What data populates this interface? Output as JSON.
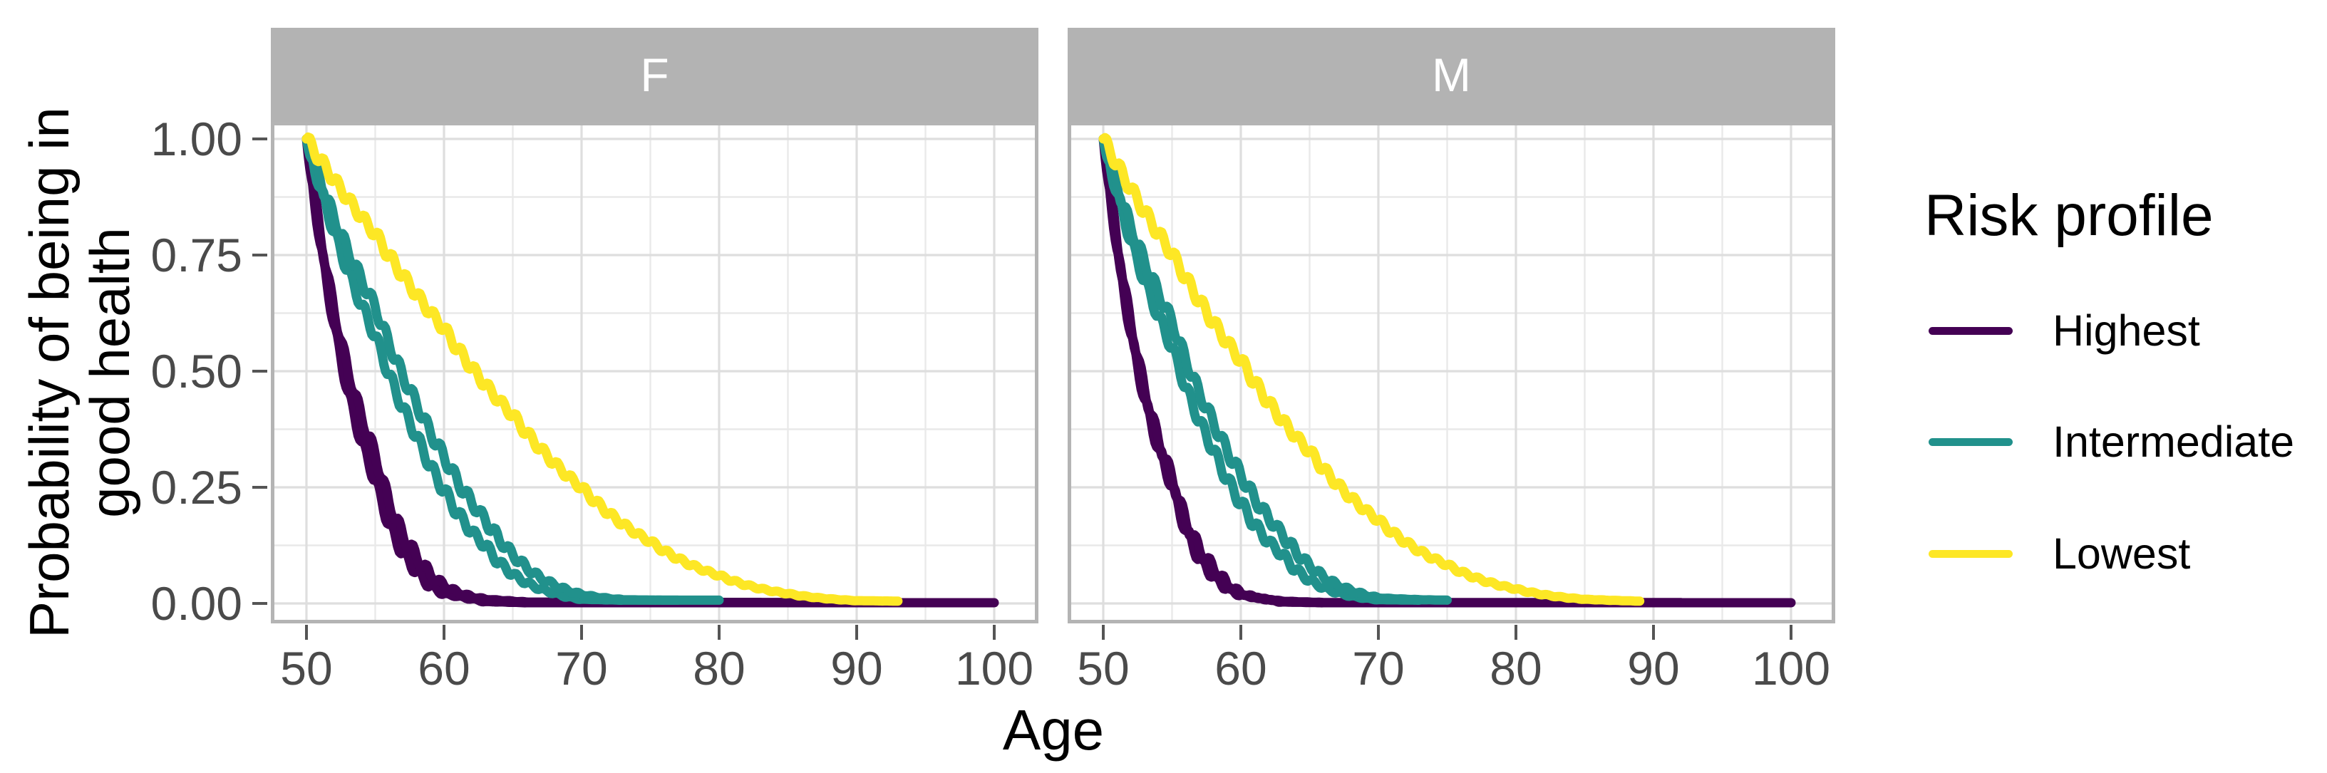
{
  "chart_data": {
    "type": "line",
    "title": "",
    "xlabel": "Age",
    "ylabel_lines": [
      "Probability of being in",
      "good health"
    ],
    "x_ticks": [
      50,
      60,
      70,
      80,
      90,
      100
    ],
    "x_minor": [
      55,
      65,
      75,
      85,
      95
    ],
    "y_ticks": [
      {
        "label": "1.00",
        "value": 1.0
      },
      {
        "label": "0.75",
        "value": 0.75
      },
      {
        "label": "0.50",
        "value": 0.5
      },
      {
        "label": "0.25",
        "value": 0.25
      },
      {
        "label": "0.00",
        "value": 0.0
      }
    ],
    "y_minor": [
      0.125,
      0.375,
      0.625,
      0.875
    ],
    "xlim": [
      47.4,
      103.2
    ],
    "ylim": [
      -0.043,
      1.037
    ],
    "grid": "major+minor",
    "legend": {
      "title": "Risk profile",
      "position": "right",
      "entries": [
        {
          "label": "Highest",
          "color": "#440154"
        },
        {
          "label": "Intermediate",
          "color": "#21918c"
        },
        {
          "label": "Lowest",
          "color": "#fde725"
        }
      ]
    },
    "facets": [
      {
        "label": "F",
        "series": [
          {
            "profile": "Highest",
            "color": "#440154",
            "phase": 1,
            "points": [
              [
                50,
                1
              ],
              [
                52,
                0.6
              ],
              [
                55,
                0.265
              ],
              [
                58,
                0.07
              ],
              [
                60,
                0.021
              ],
              [
                63,
                0.004
              ],
              [
                66,
                0.0015
              ],
              [
                100,
                0.0015
              ]
            ]
          },
          {
            "profile": "Highest",
            "color": "#440154",
            "phase": -1,
            "points": [
              [
                50,
                1
              ],
              [
                52,
                0.63
              ],
              [
                55,
                0.32
              ],
              [
                58,
                0.1
              ],
              [
                60,
                0.038
              ],
              [
                63,
                0.009
              ],
              [
                66,
                0.003
              ],
              [
                88,
                0.002
              ]
            ]
          },
          {
            "profile": "Intermediate",
            "color": "#21918c",
            "phase": 1,
            "points": [
              [
                50,
                1
              ],
              [
                52,
                0.8
              ],
              [
                55,
                0.576
              ],
              [
                58,
                0.36
              ],
              [
                60,
                0.243
              ],
              [
                63,
                0.124
              ],
              [
                65,
                0.063
              ],
              [
                68,
                0.022
              ],
              [
                70,
                0.009
              ],
              [
                73,
                0.007
              ],
              [
                77,
                0.007
              ]
            ]
          },
          {
            "profile": "Intermediate",
            "color": "#21918c",
            "phase": -1,
            "points": [
              [
                50,
                1
              ],
              [
                52,
                0.83
              ],
              [
                55,
                0.638
              ],
              [
                58,
                0.43
              ],
              [
                60,
                0.316
              ],
              [
                63,
                0.18
              ],
              [
                65,
                0.105
              ],
              [
                68,
                0.04
              ],
              [
                70,
                0.019
              ],
              [
                73,
                0.008
              ],
              [
                76,
                0.007
              ],
              [
                80,
                0.007
              ]
            ]
          },
          {
            "profile": "Lowest",
            "color": "#fde725",
            "phase": 1,
            "points": [
              [
                50,
                1
              ],
              [
                55,
                0.795
              ],
              [
                60,
                0.591
              ],
              [
                65,
                0.405
              ],
              [
                70,
                0.249
              ],
              [
                75,
                0.133
              ],
              [
                80,
                0.06
              ],
              [
                85,
                0.021
              ],
              [
                90,
                0.006
              ],
              [
                93,
                0.005
              ]
            ]
          }
        ]
      },
      {
        "label": "M",
        "series": [
          {
            "profile": "Highest",
            "color": "#440154",
            "phase": 1,
            "points": [
              [
                50,
                1
              ],
              [
                52,
                0.58
              ],
              [
                55,
                0.253
              ],
              [
                58,
                0.06
              ],
              [
                60,
                0.018
              ],
              [
                63,
                0.003
              ],
              [
                66,
                0.0015
              ],
              [
                100,
                0.0015
              ]
            ]
          },
          {
            "profile": "Highest",
            "color": "#440154",
            "phase": -1,
            "points": [
              [
                50,
                1
              ],
              [
                52,
                0.6
              ],
              [
                55,
                0.27
              ],
              [
                58,
                0.075
              ],
              [
                60,
                0.022
              ],
              [
                63,
                0.005
              ],
              [
                66,
                0.002
              ],
              [
                92,
                0.002
              ]
            ]
          },
          {
            "profile": "Intermediate",
            "color": "#21918c",
            "phase": 1,
            "points": [
              [
                50,
                1
              ],
              [
                52,
                0.78
              ],
              [
                55,
                0.551
              ],
              [
                58,
                0.33
              ],
              [
                60,
                0.216
              ],
              [
                63,
                0.105
              ],
              [
                65,
                0.05
              ],
              [
                68,
                0.016
              ],
              [
                70,
                0.008
              ],
              [
                73,
                0.007
              ]
            ]
          },
          {
            "profile": "Intermediate",
            "color": "#21918c",
            "phase": -1,
            "points": [
              [
                50,
                1
              ],
              [
                52,
                0.81
              ],
              [
                55,
                0.607
              ],
              [
                58,
                0.39
              ],
              [
                60,
                0.277
              ],
              [
                63,
                0.15
              ],
              [
                65,
                0.081
              ],
              [
                68,
                0.028
              ],
              [
                70,
                0.012
              ],
              [
                73,
                0.008
              ],
              [
                75,
                0.007
              ]
            ]
          },
          {
            "profile": "Lowest",
            "color": "#fde725",
            "phase": 1,
            "points": [
              [
                50,
                1
              ],
              [
                55,
                0.753
              ],
              [
                60,
                0.523
              ],
              [
                65,
                0.327
              ],
              [
                70,
                0.179
              ],
              [
                75,
                0.083
              ],
              [
                80,
                0.031
              ],
              [
                85,
                0.009
              ],
              [
                89,
                0.005
              ]
            ]
          }
        ]
      }
    ]
  },
  "styles": {
    "background": "#ffffff",
    "strip_fill": "#b3b3b3",
    "strip_text": "#ffffff",
    "panel_border": "#b4b4b4",
    "grid_major": "#dedede",
    "grid_minor": "#e9e9e9",
    "tick_color": "#555555",
    "tick_label_color": "#4a4a4a",
    "title_color": "#000000",
    "line_width": 13
  }
}
